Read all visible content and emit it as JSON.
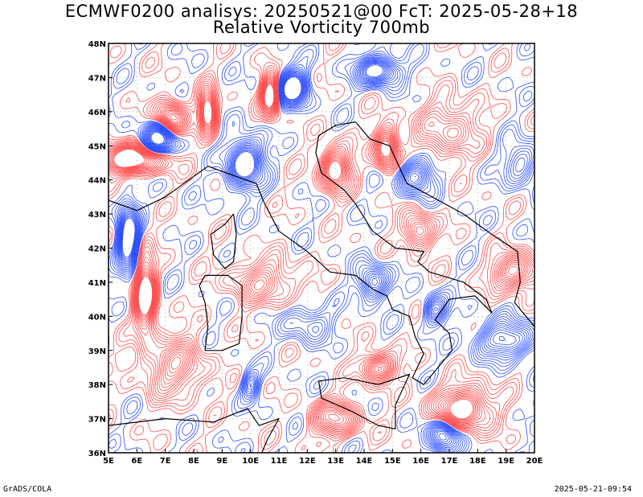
{
  "header": {
    "title_line1": "ECMWF0200 analisys: 20250521@00 FcT: 2025-05-28+18",
    "title_line2": "Relative Vorticity 700mb"
  },
  "footer": {
    "left": "GrADS/COLA",
    "right": "2025-05-21-09:54"
  },
  "colors": {
    "positive_vorticity": "#ff4a4a",
    "negative_vorticity": "#2a4dff",
    "coastline": "#000000",
    "grid": "#888888"
  },
  "chart_data": {
    "type": "heatmap",
    "title": "Relative Vorticity 700mb",
    "x_axis": {
      "range": [
        5,
        20
      ],
      "ticks": [
        {
          "value": 5,
          "label": "5E"
        },
        {
          "value": 6,
          "label": "6E"
        },
        {
          "value": 7,
          "label": "7E"
        },
        {
          "value": 8,
          "label": "8E"
        },
        {
          "value": 9,
          "label": "9E"
        },
        {
          "value": 10,
          "label": "10E"
        },
        {
          "value": 11,
          "label": "11E"
        },
        {
          "value": 12,
          "label": "12E"
        },
        {
          "value": 13,
          "label": "13E"
        },
        {
          "value": 14,
          "label": "14E"
        },
        {
          "value": 15,
          "label": "15E"
        },
        {
          "value": 16,
          "label": "16E"
        },
        {
          "value": 17,
          "label": "17E"
        },
        {
          "value": 18,
          "label": "18E"
        },
        {
          "value": 19,
          "label": "19E"
        },
        {
          "value": 20,
          "label": "20E"
        }
      ]
    },
    "y_axis": {
      "range": [
        36,
        48
      ],
      "ticks": [
        {
          "value": 36,
          "label": "36N"
        },
        {
          "value": 37,
          "label": "37N"
        },
        {
          "value": 38,
          "label": "38N"
        },
        {
          "value": 39,
          "label": "39N"
        },
        {
          "value": 40,
          "label": "40N"
        },
        {
          "value": 41,
          "label": "41N"
        },
        {
          "value": 42,
          "label": "42N"
        },
        {
          "value": 43,
          "label": "43N"
        },
        {
          "value": 44,
          "label": "44N"
        },
        {
          "value": 45,
          "label": "45N"
        },
        {
          "value": 46,
          "label": "46N"
        },
        {
          "value": 47,
          "label": "47N"
        },
        {
          "value": 48,
          "label": "48N"
        }
      ]
    },
    "grid": true,
    "centers": [
      {
        "lon": 5.8,
        "lat": 44.6,
        "sign": 1,
        "amp": 1.0,
        "sx": 1.2,
        "sy": 0.4
      },
      {
        "lon": 7.2,
        "lat": 45.8,
        "sign": 1,
        "amp": 0.9,
        "sx": 0.5,
        "sy": 0.5
      },
      {
        "lon": 8.5,
        "lat": 46.0,
        "sign": 1,
        "amp": 1.0,
        "sx": 0.3,
        "sy": 0.6
      },
      {
        "lon": 10.7,
        "lat": 46.5,
        "sign": 1,
        "amp": 1.0,
        "sx": 0.3,
        "sy": 0.6
      },
      {
        "lon": 13.0,
        "lat": 44.3,
        "sign": 1,
        "amp": 0.9,
        "sx": 0.5,
        "sy": 0.6
      },
      {
        "lon": 14.8,
        "lat": 44.9,
        "sign": 1,
        "amp": 0.9,
        "sx": 0.4,
        "sy": 0.6
      },
      {
        "lon": 15.9,
        "lat": 42.5,
        "sign": 1,
        "amp": 0.7,
        "sx": 0.5,
        "sy": 0.5
      },
      {
        "lon": 6.3,
        "lat": 40.6,
        "sign": 1,
        "amp": 1.0,
        "sx": 0.35,
        "sy": 1.1
      },
      {
        "lon": 7.3,
        "lat": 38.5,
        "sign": 1,
        "amp": 0.6,
        "sx": 1.0,
        "sy": 0.8
      },
      {
        "lon": 14.5,
        "lat": 38.5,
        "sign": 1,
        "amp": 0.8,
        "sx": 0.6,
        "sy": 0.4
      },
      {
        "lon": 17.5,
        "lat": 37.3,
        "sign": 1,
        "amp": 0.9,
        "sx": 1.0,
        "sy": 0.6
      },
      {
        "lon": 19.3,
        "lat": 41.3,
        "sign": 1,
        "amp": 0.8,
        "sx": 0.8,
        "sy": 0.5
      },
      {
        "lon": 13.0,
        "lat": 37.0,
        "sign": 1,
        "amp": 0.7,
        "sx": 0.8,
        "sy": 0.5
      },
      {
        "lon": 10.5,
        "lat": 41.0,
        "sign": 1,
        "amp": 0.5,
        "sx": 1.2,
        "sy": 0.6
      },
      {
        "lon": 17.0,
        "lat": 45.5,
        "sign": 1,
        "amp": 0.5,
        "sx": 1.0,
        "sy": 0.8
      },
      {
        "lon": 6.8,
        "lat": 45.2,
        "sign": -1,
        "amp": 0.9,
        "sx": 0.6,
        "sy": 0.5
      },
      {
        "lon": 9.8,
        "lat": 44.5,
        "sign": -1,
        "amp": 1.0,
        "sx": 0.6,
        "sy": 0.7
      },
      {
        "lon": 11.5,
        "lat": 46.7,
        "sign": -1,
        "amp": 1.0,
        "sx": 0.5,
        "sy": 0.5
      },
      {
        "lon": 14.5,
        "lat": 47.2,
        "sign": -1,
        "amp": 0.9,
        "sx": 0.7,
        "sy": 0.4
      },
      {
        "lon": 15.8,
        "lat": 44.1,
        "sign": -1,
        "amp": 0.7,
        "sx": 0.6,
        "sy": 0.5
      },
      {
        "lon": 5.7,
        "lat": 42.3,
        "sign": -1,
        "amp": 1.0,
        "sx": 0.35,
        "sy": 0.9
      },
      {
        "lon": 14.3,
        "lat": 41.0,
        "sign": -1,
        "amp": 0.7,
        "sx": 0.5,
        "sy": 0.5
      },
      {
        "lon": 16.5,
        "lat": 40.2,
        "sign": -1,
        "amp": 0.6,
        "sx": 0.4,
        "sy": 0.4
      },
      {
        "lon": 19.0,
        "lat": 39.3,
        "sign": -1,
        "amp": 0.7,
        "sx": 1.0,
        "sy": 0.5
      },
      {
        "lon": 16.8,
        "lat": 36.5,
        "sign": -1,
        "amp": 0.8,
        "sx": 0.5,
        "sy": 0.5
      },
      {
        "lon": 10.0,
        "lat": 38.0,
        "sign": -1,
        "amp": 0.5,
        "sx": 0.3,
        "sy": 0.4
      },
      {
        "lon": 12.0,
        "lat": 39.8,
        "sign": -1,
        "amp": 0.4,
        "sx": 0.8,
        "sy": 0.5
      },
      {
        "lon": 19.5,
        "lat": 44.5,
        "sign": -1,
        "amp": 0.5,
        "sx": 0.6,
        "sy": 0.6
      }
    ],
    "coastlines": [
      {
        "name": "italy-mainland",
        "points": [
          [
            7.5,
            43.8
          ],
          [
            8.5,
            44.4
          ],
          [
            9.5,
            44.1
          ],
          [
            10.2,
            43.9
          ],
          [
            10.5,
            43.3
          ],
          [
            11.0,
            42.5
          ],
          [
            12.0,
            41.9
          ],
          [
            12.8,
            41.3
          ],
          [
            13.7,
            41.2
          ],
          [
            14.3,
            40.8
          ],
          [
            14.8,
            40.6
          ],
          [
            15.0,
            40.2
          ],
          [
            15.6,
            40.0
          ],
          [
            15.8,
            39.4
          ],
          [
            16.1,
            38.9
          ],
          [
            15.7,
            38.2
          ],
          [
            16.1,
            38.0
          ],
          [
            16.6,
            38.5
          ],
          [
            17.1,
            39.0
          ],
          [
            17.0,
            39.5
          ],
          [
            16.5,
            39.9
          ],
          [
            17.0,
            40.5
          ],
          [
            17.9,
            40.6
          ],
          [
            18.5,
            40.1
          ],
          [
            18.3,
            40.5
          ],
          [
            17.5,
            41.0
          ],
          [
            16.3,
            41.3
          ],
          [
            15.9,
            41.6
          ],
          [
            16.1,
            41.9
          ],
          [
            15.1,
            42.0
          ],
          [
            14.3,
            42.5
          ],
          [
            13.7,
            43.3
          ],
          [
            13.3,
            43.7
          ],
          [
            12.5,
            44.2
          ],
          [
            12.3,
            44.8
          ],
          [
            12.4,
            45.3
          ],
          [
            13.0,
            45.6
          ],
          [
            13.7,
            45.7
          ]
        ]
      },
      {
        "name": "sardinia",
        "points": [
          [
            8.4,
            41.2
          ],
          [
            9.2,
            41.2
          ],
          [
            9.7,
            40.9
          ],
          [
            9.7,
            40.0
          ],
          [
            9.6,
            39.2
          ],
          [
            9.0,
            39.0
          ],
          [
            8.4,
            39.0
          ],
          [
            8.5,
            39.7
          ],
          [
            8.4,
            40.4
          ],
          [
            8.2,
            40.9
          ],
          [
            8.4,
            41.2
          ]
        ]
      },
      {
        "name": "corsica",
        "points": [
          [
            9.4,
            43.0
          ],
          [
            9.5,
            42.4
          ],
          [
            9.4,
            41.6
          ],
          [
            9.1,
            41.4
          ],
          [
            8.7,
            41.8
          ],
          [
            8.6,
            42.4
          ],
          [
            9.1,
            42.7
          ],
          [
            9.4,
            43.0
          ]
        ]
      },
      {
        "name": "sicily",
        "points": [
          [
            12.4,
            38.1
          ],
          [
            13.3,
            38.2
          ],
          [
            14.5,
            38.0
          ],
          [
            15.6,
            38.3
          ],
          [
            15.1,
            37.4
          ],
          [
            15.1,
            36.7
          ],
          [
            14.5,
            36.8
          ],
          [
            13.6,
            37.2
          ],
          [
            12.5,
            37.6
          ],
          [
            12.4,
            38.1
          ]
        ]
      },
      {
        "name": "balkan-coast",
        "points": [
          [
            13.7,
            45.7
          ],
          [
            14.2,
            45.2
          ],
          [
            14.9,
            45.0
          ],
          [
            15.5,
            43.9
          ],
          [
            16.4,
            43.5
          ],
          [
            17.5,
            43.0
          ],
          [
            18.5,
            42.4
          ],
          [
            19.4,
            41.9
          ],
          [
            19.5,
            41.0
          ],
          [
            19.3,
            40.4
          ],
          [
            20.0,
            39.7
          ]
        ]
      },
      {
        "name": "france-coast",
        "points": [
          [
            5.0,
            43.4
          ],
          [
            6.0,
            43.1
          ],
          [
            7.0,
            43.5
          ],
          [
            7.5,
            43.8
          ]
        ]
      },
      {
        "name": "africa-coast",
        "points": [
          [
            5.0,
            36.8
          ],
          [
            7.0,
            37.0
          ],
          [
            8.7,
            36.9
          ],
          [
            9.9,
            37.3
          ],
          [
            10.3,
            36.8
          ],
          [
            11.0,
            37.0
          ],
          [
            10.6,
            36.4
          ],
          [
            10.4,
            36.0
          ]
        ]
      }
    ]
  }
}
